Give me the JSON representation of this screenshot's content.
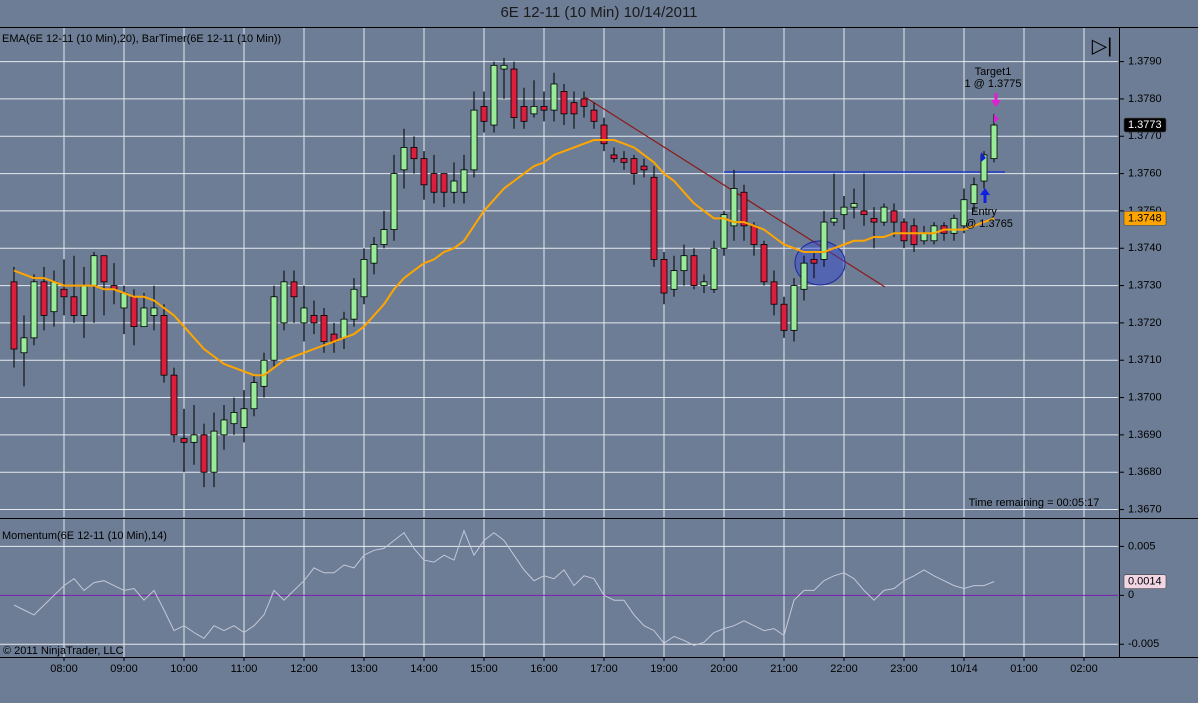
{
  "title": "6E 12-11 (10 Min)  10/14/2011",
  "indicator_icon": "▷|",
  "annotations": {
    "target_name": "Target1",
    "target_order": "1 @ 1.3775",
    "entry_name": "Entry",
    "entry_order": "@ 1.3765",
    "timer": "Time remaining = 00:05:17",
    "copyright": "© 2011 NinjaTrader, LLC"
  },
  "chart_data": [
    {
      "type": "candlestick",
      "label": "EMA(6E 12-11 (10 Min),20), BarTimer(6E 12-11 (10 Min))",
      "up_color": "#98ec98",
      "down_color": "#dc1e3c",
      "last_price_color": "#000000",
      "open": [
        1.3731,
        1.3712,
        1.3716,
        1.3731,
        1.3723,
        1.3729,
        1.3727,
        1.3722,
        1.373,
        1.3738,
        1.373,
        1.3724,
        1.3727,
        1.3719,
        1.3722,
        1.3722,
        1.3706,
        1.3689,
        1.3688,
        1.369,
        1.368,
        1.369,
        1.3693,
        1.3692,
        1.3697,
        1.3703,
        1.371,
        1.372,
        1.3731,
        1.372,
        1.3722,
        1.3722,
        1.3717,
        1.3716,
        1.3721,
        1.3727,
        1.3736,
        1.3741,
        1.3745,
        1.3761,
        1.3767,
        1.3764,
        1.376,
        1.376,
        1.3755,
        1.3755,
        1.3761,
        1.3778,
        1.3773,
        1.3788,
        1.3788,
        1.3778,
        1.3776,
        1.3778,
        1.3777,
        1.3782,
        1.3779,
        1.378,
        1.3777,
        1.3773,
        1.3765,
        1.3764,
        1.3764,
        1.3762,
        1.3759,
        1.3737,
        1.3729,
        1.3734,
        1.3738,
        1.373,
        1.3729,
        1.374,
        1.3746,
        1.3755,
        1.3746,
        1.3741,
        1.3731,
        1.3725,
        1.3718,
        1.3729,
        1.3737,
        1.3737,
        1.3747,
        1.3749,
        1.3751,
        1.375,
        1.3748,
        1.3747,
        1.375,
        1.3747,
        1.3746,
        1.3742,
        1.3742,
        1.3746,
        1.3744,
        1.3746,
        1.3752,
        1.3758,
        1.3764
      ],
      "high": [
        1.3735,
        1.3722,
        1.3733,
        1.3735,
        1.3734,
        1.3737,
        1.3738,
        1.3735,
        1.3739,
        1.3738,
        1.3736,
        1.373,
        1.3729,
        1.3728,
        1.373,
        1.3725,
        1.3708,
        1.3697,
        1.3698,
        1.3693,
        1.3696,
        1.3698,
        1.37,
        1.3702,
        1.3706,
        1.3712,
        1.373,
        1.3734,
        1.3734,
        1.373,
        1.3726,
        1.3724,
        1.372,
        1.3723,
        1.3732,
        1.374,
        1.3743,
        1.375,
        1.3765,
        1.3772,
        1.377,
        1.3766,
        1.3765,
        1.376,
        1.3763,
        1.3765,
        1.3782,
        1.3782,
        1.379,
        1.3791,
        1.379,
        1.3783,
        1.3785,
        1.3782,
        1.3787,
        1.3784,
        1.3782,
        1.3782,
        1.3779,
        1.3775,
        1.3767,
        1.3766,
        1.3765,
        1.3764,
        1.3762,
        1.3739,
        1.3738,
        1.3741,
        1.374,
        1.3733,
        1.3742,
        1.375,
        1.3761,
        1.3757,
        1.3747,
        1.3742,
        1.3734,
        1.3727,
        1.3732,
        1.3738,
        1.3739,
        1.375,
        1.376,
        1.3754,
        1.3756,
        1.376,
        1.3751,
        1.3752,
        1.3752,
        1.3748,
        1.3748,
        1.3746,
        1.3747,
        1.3747,
        1.3749,
        1.3756,
        1.3759,
        1.3766,
        1.3776
      ],
      "low": [
        1.3708,
        1.3703,
        1.3714,
        1.3718,
        1.3719,
        1.3722,
        1.372,
        1.3716,
        1.372,
        1.3722,
        1.3725,
        1.3717,
        1.3714,
        1.3719,
        1.3718,
        1.3704,
        1.3688,
        1.368,
        1.3682,
        1.3676,
        1.3676,
        1.3686,
        1.369,
        1.3688,
        1.3695,
        1.37,
        1.3708,
        1.3718,
        1.372,
        1.3715,
        1.3717,
        1.3712,
        1.3712,
        1.3713,
        1.3719,
        1.3725,
        1.3733,
        1.374,
        1.3742,
        1.3756,
        1.376,
        1.3753,
        1.3752,
        1.3751,
        1.3752,
        1.3752,
        1.3759,
        1.3771,
        1.3771,
        1.378,
        1.3772,
        1.3772,
        1.3775,
        1.3774,
        1.3774,
        1.3773,
        1.3772,
        1.3775,
        1.3772,
        1.3766,
        1.3763,
        1.3761,
        1.3757,
        1.3759,
        1.3735,
        1.3725,
        1.3727,
        1.373,
        1.3729,
        1.3728,
        1.3728,
        1.3738,
        1.3742,
        1.3742,
        1.3738,
        1.373,
        1.3722,
        1.3716,
        1.3715,
        1.3726,
        1.3732,
        1.3735,
        1.3746,
        1.3745,
        1.3748,
        1.3746,
        1.374,
        1.3746,
        1.3743,
        1.374,
        1.3739,
        1.3741,
        1.3741,
        1.3742,
        1.3742,
        1.3744,
        1.375,
        1.3756,
        1.3763
      ],
      "close": [
        1.3713,
        1.3716,
        1.3731,
        1.3722,
        1.3731,
        1.3727,
        1.3722,
        1.373,
        1.3738,
        1.3731,
        1.3729,
        1.3728,
        1.3719,
        1.3724,
        1.3724,
        1.3706,
        1.369,
        1.3688,
        1.369,
        1.368,
        1.3691,
        1.3694,
        1.3696,
        1.3697,
        1.3704,
        1.371,
        1.3727,
        1.3731,
        1.3727,
        1.3724,
        1.372,
        1.3715,
        1.3715,
        1.3721,
        1.3729,
        1.3737,
        1.3741,
        1.3745,
        1.376,
        1.3767,
        1.3764,
        1.3757,
        1.3755,
        1.3755,
        1.3758,
        1.3761,
        1.3777,
        1.3774,
        1.3789,
        1.3789,
        1.3775,
        1.3774,
        1.3778,
        1.3777,
        1.3784,
        1.3776,
        1.3776,
        1.3778,
        1.3774,
        1.3768,
        1.3764,
        1.3763,
        1.376,
        1.3761,
        1.3737,
        1.3728,
        1.3734,
        1.3738,
        1.373,
        1.3731,
        1.374,
        1.3749,
        1.3756,
        1.3746,
        1.3741,
        1.3731,
        1.3725,
        1.3718,
        1.373,
        1.3736,
        1.3736,
        1.3747,
        1.3748,
        1.3751,
        1.3752,
        1.3749,
        1.3747,
        1.3751,
        1.3747,
        1.3742,
        1.3741,
        1.3744,
        1.3746,
        1.3744,
        1.3748,
        1.3753,
        1.3757,
        1.3765,
        1.3773
      ],
      "series": [
        {
          "color": "#ffa500",
          "values": [
            1.3734,
            1.3733,
            1.3732,
            1.3732,
            1.3731,
            1.373,
            1.373,
            1.373,
            1.373,
            1.3729,
            1.3729,
            1.3728,
            1.3727,
            1.3727,
            1.3726,
            1.3724,
            1.3722,
            1.3719,
            1.3716,
            1.3713,
            1.3711,
            1.3709,
            1.3708,
            1.3707,
            1.3706,
            1.3706,
            1.3708,
            1.371,
            1.3711,
            1.3712,
            1.3713,
            1.3714,
            1.3715,
            1.3716,
            1.3717,
            1.3719,
            1.3722,
            1.3725,
            1.3729,
            1.3732,
            1.3734,
            1.3736,
            1.3737,
            1.3739,
            1.374,
            1.3742,
            1.3746,
            1.375,
            1.3753,
            1.3756,
            1.3758,
            1.376,
            1.3762,
            1.3763,
            1.3765,
            1.3766,
            1.3767,
            1.3768,
            1.3769,
            1.3769,
            1.3769,
            1.3768,
            1.3767,
            1.3765,
            1.3763,
            1.376,
            1.3758,
            1.3755,
            1.3752,
            1.375,
            1.3748,
            1.3748,
            1.3747,
            1.3747,
            1.3746,
            1.3745,
            1.3743,
            1.3741,
            1.374,
            1.3739,
            1.3739,
            1.3739,
            1.374,
            1.3741,
            1.3742,
            1.3742,
            1.3743,
            1.3743,
            1.3744,
            1.3744,
            1.3744,
            1.3744,
            1.3744,
            1.3745,
            1.3745,
            1.3745,
            1.3746,
            1.3747,
            1.3748
          ]
        }
      ],
      "xlim": [
        -1.4,
        110.4
      ],
      "xticks": [
        {
          "value": 5,
          "label": "08:00"
        },
        {
          "value": 11,
          "label": "09:00"
        },
        {
          "value": 17,
          "label": "10:00"
        },
        {
          "value": 23,
          "label": "11:00"
        },
        {
          "value": 29,
          "label": "12:00"
        },
        {
          "value": 35,
          "label": "13:00"
        },
        {
          "value": 41,
          "label": "14:00"
        },
        {
          "value": 47,
          "label": "15:00"
        },
        {
          "value": 53,
          "label": "16:00"
        },
        {
          "value": 59,
          "label": "17:00"
        },
        {
          "value": 65,
          "label": "19:00"
        },
        {
          "value": 71,
          "label": "20:00"
        },
        {
          "value": 77,
          "label": "21:00"
        },
        {
          "value": 83,
          "label": "22:00"
        },
        {
          "value": 89,
          "label": "23:00"
        },
        {
          "value": 95,
          "label": "10/14"
        },
        {
          "value": 101,
          "label": "01:00"
        },
        {
          "value": 107,
          "label": "02:00"
        }
      ],
      "ylim": [
        1.3668,
        1.3799
      ],
      "yticks": [
        {
          "value": 1.367,
          "label": "1.3670"
        },
        {
          "value": 1.368,
          "label": "1.3680"
        },
        {
          "value": 1.369,
          "label": "1.3690"
        },
        {
          "value": 1.37,
          "label": "1.3700"
        },
        {
          "value": 1.371,
          "label": "1.3710"
        },
        {
          "value": 1.372,
          "label": "1.3720"
        },
        {
          "value": 1.373,
          "label": "1.3730"
        },
        {
          "value": 1.374,
          "label": "1.3740"
        },
        {
          "value": 1.375,
          "label": "1.3750"
        },
        {
          "value": 1.376,
          "label": "1.3760"
        },
        {
          "value": 1.377,
          "label": "1.3770"
        },
        {
          "value": 1.378,
          "label": "1.3780"
        },
        {
          "value": 1.379,
          "label": "1.3790"
        }
      ],
      "grid": true
    },
    {
      "type": "line",
      "label": "Momentum(6E 12-11 (10 Min),14)",
      "color": "#c4c8d8",
      "zero_line_color": "#7a1fb0",
      "tag_color": "#f2d6e4",
      "values": [
        -0.001,
        -0.0015,
        -0.002,
        -0.001,
        0,
        0.001,
        0.0017,
        0.0005,
        0.0013,
        0.0015,
        0.001,
        0.0005,
        0.0007,
        -0.0005,
        0.0005,
        -0.0015,
        -0.0036,
        -0.0031,
        -0.0038,
        -0.0044,
        -0.0031,
        -0.0036,
        -0.0031,
        -0.0038,
        -0.0031,
        -0.002,
        0.0005,
        -0.0005,
        0.0005,
        0.0015,
        0.0028,
        0.0023,
        0.0023,
        0.0031,
        0.0028,
        0.0041,
        0.0046,
        0.0048,
        0.0056,
        0.0064,
        0.0048,
        0.0036,
        0.0034,
        0.0041,
        0.0036,
        0.0066,
        0.0041,
        0.0056,
        0.0064,
        0.0056,
        0.0041,
        0.0026,
        0.0015,
        0.002,
        0.0017,
        0.0026,
        0.001,
        0.002,
        0.0017,
        0,
        -0.0005,
        -0.0005,
        -0.002,
        -0.0031,
        -0.0036,
        -0.0049,
        -0.0042,
        -0.0046,
        -0.0051,
        -0.0048,
        -0.0038,
        -0.0034,
        -0.0031,
        -0.0026,
        -0.0031,
        -0.0036,
        -0.0034,
        -0.0041,
        -0.0005,
        0.0005,
        0.0005,
        0.0015,
        0.002,
        0.0023,
        0.0017,
        0.0005,
        -0.0005,
        0.0005,
        0.0007,
        0.0015,
        0.002,
        0.0026,
        0.002,
        0.0015,
        0.001,
        0.0007,
        0.001,
        0.001,
        0.0014
      ],
      "ylim": [
        -0.0063,
        0.0078
      ],
      "yticks": [
        0.005,
        0,
        -0.005
      ],
      "grid": true
    }
  ]
}
